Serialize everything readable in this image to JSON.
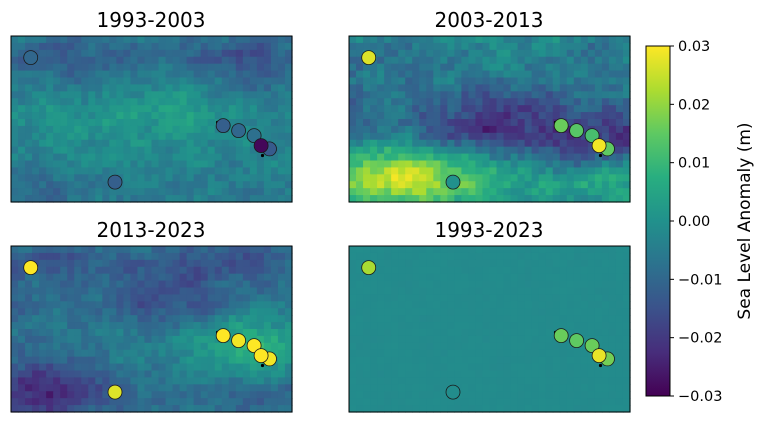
{
  "chart_data": {
    "type": "heatmap",
    "colormap": "viridis",
    "colorbar": {
      "label": "Sea Level Anomaly (m)",
      "range": [
        -0.03,
        0.03
      ],
      "ticks": [
        "0.03",
        "0.02",
        "0.01",
        "0.00",
        "−0.01",
        "−0.02",
        "−0.03"
      ]
    },
    "panels": [
      {
        "title": "1993-2003",
        "field": {
          "base": -0.004,
          "bands": [
            {
              "center": 0.12,
              "value": -0.006
            },
            {
              "center": 0.45,
              "value": 0.003
            },
            {
              "center": 0.75,
              "value": 0.001
            },
            {
              "center": 0.95,
              "value": -0.002
            }
          ],
          "patches": [
            {
              "x": 0.2,
              "y": 0.6,
              "value": 0.004
            },
            {
              "x": 0.6,
              "y": 0.45,
              "value": 0.005
            },
            {
              "x": 0.85,
              "y": 0.2,
              "value": -0.006
            },
            {
              "x": 0.3,
              "y": 0.15,
              "value": -0.004
            },
            {
              "x": 0.1,
              "y": 0.85,
              "value": -0.004
            }
          ],
          "noise": 0.003
        },
        "stations": [
          {
            "x": 0.07,
            "y": 0.13,
            "value": -0.01
          },
          {
            "x": 0.37,
            "y": 0.88,
            "value": -0.012
          },
          {
            "x": 0.755,
            "y": 0.54,
            "value": -0.012
          },
          {
            "x": 0.81,
            "y": 0.57,
            "value": -0.01
          },
          {
            "x": 0.865,
            "y": 0.6,
            "value": -0.008
          },
          {
            "x": 0.92,
            "y": 0.68,
            "value": -0.013
          },
          {
            "x": 0.89,
            "y": 0.66,
            "value": -0.029
          }
        ]
      },
      {
        "title": "2003-2013",
        "field": {
          "base": -0.004,
          "bands": [
            {
              "center": 0.15,
              "value": -0.004
            },
            {
              "center": 0.4,
              "value": -0.006
            },
            {
              "center": 0.58,
              "value": -0.014
            },
            {
              "center": 0.88,
              "value": 0.012
            }
          ],
          "patches": [
            {
              "x": 0.15,
              "y": 0.82,
              "value": 0.018
            },
            {
              "x": 0.45,
              "y": 0.85,
              "value": 0.008
            },
            {
              "x": 0.6,
              "y": 0.2,
              "value": 0.006
            },
            {
              "x": 0.8,
              "y": 0.65,
              "value": -0.01
            },
            {
              "x": 0.55,
              "y": 0.4,
              "value": -0.008
            }
          ],
          "noise": 0.004
        },
        "stations": [
          {
            "x": 0.07,
            "y": 0.13,
            "value": 0.027
          },
          {
            "x": 0.37,
            "y": 0.88,
            "value": 0.0
          },
          {
            "x": 0.755,
            "y": 0.54,
            "value": 0.016
          },
          {
            "x": 0.81,
            "y": 0.57,
            "value": 0.014
          },
          {
            "x": 0.865,
            "y": 0.6,
            "value": 0.012
          },
          {
            "x": 0.92,
            "y": 0.68,
            "value": 0.015
          },
          {
            "x": 0.89,
            "y": 0.66,
            "value": 0.029
          }
        ]
      },
      {
        "title": "2013-2023",
        "field": {
          "base": -0.006,
          "bands": [
            {
              "center": 0.1,
              "value": -0.008
            },
            {
              "center": 0.35,
              "value": -0.004
            },
            {
              "center": 0.6,
              "value": 0.002
            },
            {
              "center": 0.9,
              "value": -0.006
            }
          ],
          "patches": [
            {
              "x": 0.85,
              "y": 0.6,
              "value": 0.012
            },
            {
              "x": 0.1,
              "y": 0.85,
              "value": -0.012
            },
            {
              "x": 0.55,
              "y": 0.3,
              "value": -0.006
            }
          ],
          "noise": 0.003
        },
        "stations": [
          {
            "x": 0.07,
            "y": 0.13,
            "value": 0.03
          },
          {
            "x": 0.37,
            "y": 0.88,
            "value": 0.027
          },
          {
            "x": 0.755,
            "y": 0.54,
            "value": 0.03
          },
          {
            "x": 0.81,
            "y": 0.57,
            "value": 0.029
          },
          {
            "x": 0.865,
            "y": 0.6,
            "value": 0.03
          },
          {
            "x": 0.92,
            "y": 0.68,
            "value": 0.029
          },
          {
            "x": 0.89,
            "y": 0.66,
            "value": 0.03
          }
        ]
      },
      {
        "title": "1993-2023",
        "field": {
          "base": -0.0015,
          "bands": [],
          "patches": [],
          "noise": 0.0003
        },
        "stations": [
          {
            "x": 0.07,
            "y": 0.13,
            "value": 0.022
          },
          {
            "x": 0.37,
            "y": 0.88,
            "value": -0.001
          },
          {
            "x": 0.755,
            "y": 0.54,
            "value": 0.016
          },
          {
            "x": 0.81,
            "y": 0.57,
            "value": 0.015
          },
          {
            "x": 0.865,
            "y": 0.6,
            "value": 0.016
          },
          {
            "x": 0.92,
            "y": 0.68,
            "value": 0.017
          },
          {
            "x": 0.89,
            "y": 0.66,
            "value": 0.028
          }
        ]
      }
    ]
  }
}
